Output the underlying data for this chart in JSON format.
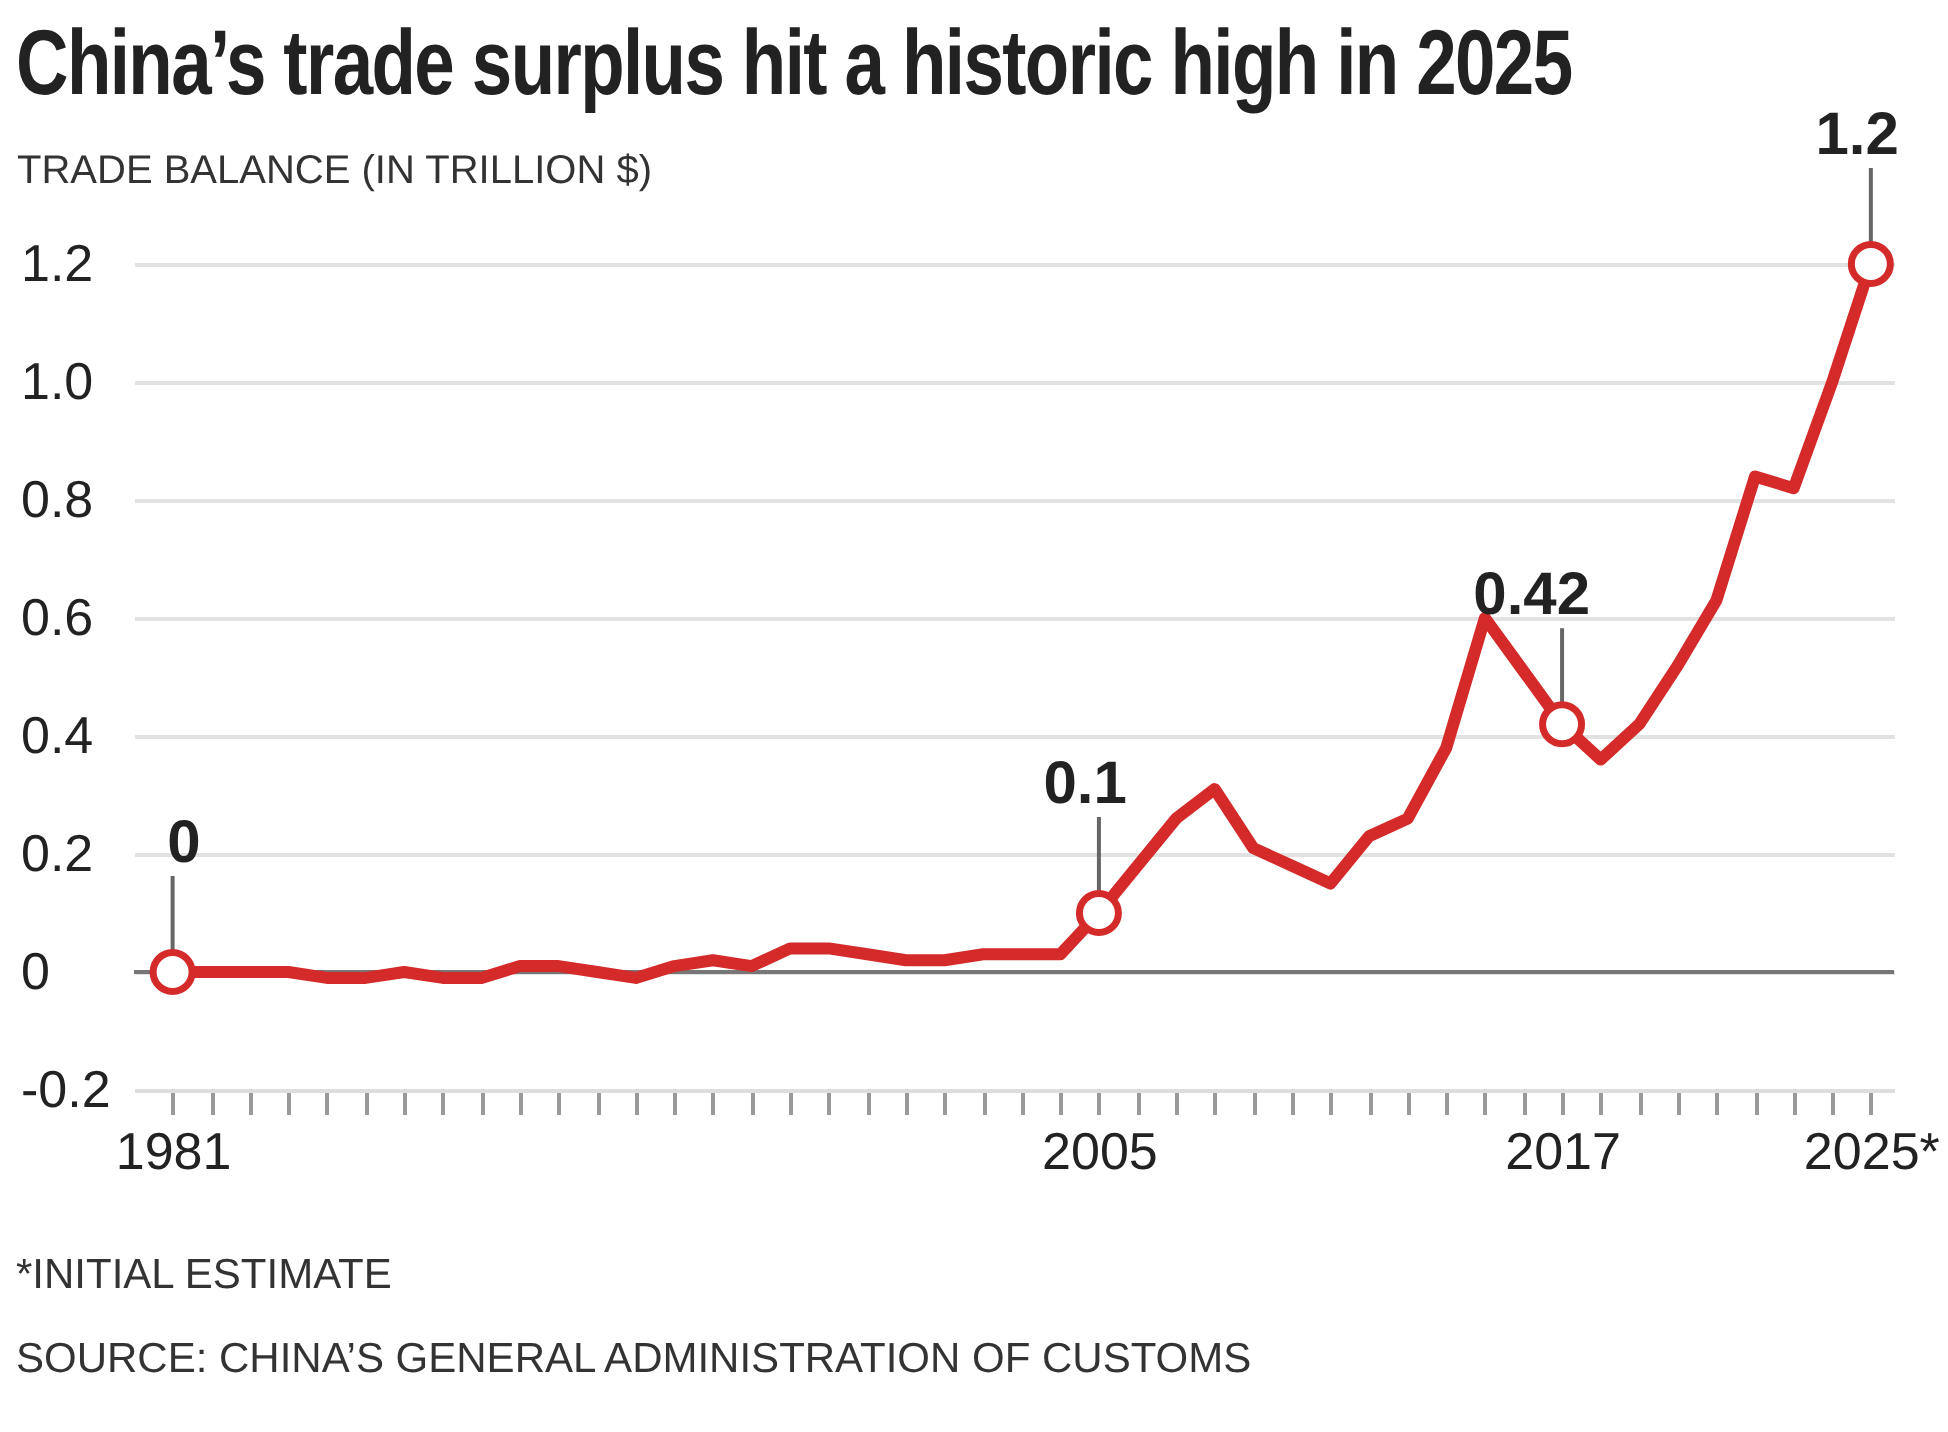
{
  "chart_data": {
    "type": "line",
    "title": "China’s trade surplus hit a historic high in 2025",
    "ylabel": "TRADE BALANCE (IN TRILLION $)",
    "x": [
      1981,
      1982,
      1983,
      1984,
      1985,
      1986,
      1987,
      1988,
      1989,
      1990,
      1991,
      1992,
      1993,
      1994,
      1995,
      1996,
      1997,
      1998,
      1999,
      2000,
      2001,
      2002,
      2003,
      2004,
      2005,
      2006,
      2007,
      2008,
      2009,
      2010,
      2011,
      2012,
      2013,
      2014,
      2015,
      2016,
      2017,
      2018,
      2019,
      2020,
      2021,
      2022,
      2023,
      2024,
      2025
    ],
    "series": [
      {
        "color": "#d42a2a",
        "values": [
          0,
          0,
          0,
          0,
          -0.01,
          -0.01,
          0,
          -0.01,
          -0.01,
          0.01,
          0.01,
          0,
          -0.01,
          0.01,
          0.02,
          0.01,
          0.04,
          0.04,
          0.03,
          0.02,
          0.02,
          0.03,
          0.03,
          0.03,
          0.1,
          0.18,
          0.26,
          0.31,
          0.21,
          0.18,
          0.15,
          0.23,
          0.26,
          0.38,
          0.6,
          0.51,
          0.42,
          0.36,
          0.42,
          0.52,
          0.63,
          0.84,
          0.82,
          1.0,
          1.2
        ]
      }
    ],
    "xlim": [
      1980,
      2025.6
    ],
    "ylim": [
      -0.2,
      1.2
    ],
    "xticks": [
      1981,
      {
        "value": 1982,
        "label": null
      },
      {
        "value": 1983,
        "label": null
      },
      {
        "value": 1984,
        "label": null
      },
      {
        "value": 1985,
        "label": null
      },
      {
        "value": 1986,
        "label": null
      },
      {
        "value": 1987,
        "label": null
      },
      {
        "value": 1988,
        "label": null
      },
      {
        "value": 1989,
        "label": null
      },
      {
        "value": 1990,
        "label": null
      },
      {
        "value": 1991,
        "label": null
      },
      {
        "value": 1992,
        "label": null
      },
      {
        "value": 1993,
        "label": null
      },
      {
        "value": 1994,
        "label": null
      },
      {
        "value": 1995,
        "label": null
      },
      {
        "value": 1996,
        "label": null
      },
      {
        "value": 1997,
        "label": null
      },
      {
        "value": 1998,
        "label": null
      },
      {
        "value": 1999,
        "label": null
      },
      {
        "value": 2000,
        "label": null
      },
      {
        "value": 2001,
        "label": null
      },
      {
        "value": 2002,
        "label": null
      },
      {
        "value": 2003,
        "label": null
      },
      {
        "value": 2004,
        "label": null
      },
      2005,
      {
        "value": 2006,
        "label": null
      },
      {
        "value": 2007,
        "label": null
      },
      {
        "value": 2008,
        "label": null
      },
      {
        "value": 2009,
        "label": null
      },
      {
        "value": 2010,
        "label": null
      },
      {
        "value": 2011,
        "label": null
      },
      {
        "value": 2012,
        "label": null
      },
      {
        "value": 2013,
        "label": null
      },
      {
        "value": 2014,
        "label": null
      },
      {
        "value": 2015,
        "label": null
      },
      {
        "value": 2016,
        "label": null
      },
      2017,
      {
        "value": 2018,
        "label": null
      },
      {
        "value": 2019,
        "label": null
      },
      {
        "value": 2020,
        "label": null
      },
      {
        "value": 2021,
        "label": null
      },
      {
        "value": 2022,
        "label": null
      },
      {
        "value": 2023,
        "label": null
      },
      {
        "value": 2024,
        "label": null
      },
      {
        "value": 2025,
        "label": "2025*"
      }
    ],
    "yticks": [
      -0.2,
      0,
      0.2,
      0.4,
      0.6,
      0.8,
      {
        "value": 1,
        "label": "1.0"
      },
      1.2
    ],
    "grid": "y",
    "legend": false,
    "ref_lines": [
      {
        "axis": "y",
        "value": 0,
        "color": "#777777"
      }
    ],
    "annotations": [
      {
        "text": "0",
        "x": 1981,
        "y": 0
      },
      {
        "text": "0.1",
        "x": 2005,
        "y": 0.1
      },
      {
        "text": "0.42",
        "x": 2017,
        "y": 0.42
      },
      {
        "text": "1.2",
        "x": 2025,
        "y": 1.2
      },
      "*INITIAL ESTIMATE",
      "SOURCE: CHINA’S GENERAL ADMINISTRATION OF CUSTOMS"
    ]
  }
}
